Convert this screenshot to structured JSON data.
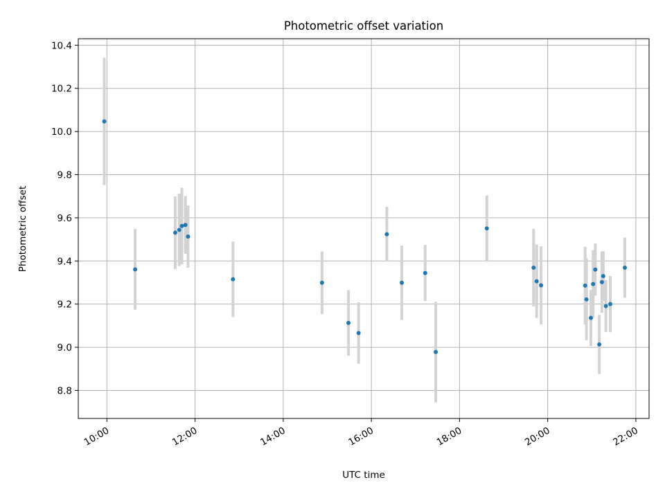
{
  "chart_data": {
    "type": "scatter",
    "title": "Photometric offset variation",
    "xlabel": "UTC time",
    "ylabel": "Photometric offset",
    "x_unit": "hours (UTC)",
    "xlim": [
      9.35,
      22.3
    ],
    "ylim": [
      8.67,
      10.43
    ],
    "grid": true,
    "x_ticks": [
      {
        "value": 10,
        "label": "10:00"
      },
      {
        "value": 12,
        "label": "12:00"
      },
      {
        "value": 14,
        "label": "14:00"
      },
      {
        "value": 16,
        "label": "16:00"
      },
      {
        "value": 18,
        "label": "18:00"
      },
      {
        "value": 20,
        "label": "20:00"
      },
      {
        "value": 22,
        "label": "22:00"
      }
    ],
    "y_ticks": [
      {
        "value": 8.8,
        "label": "8.8"
      },
      {
        "value": 9.0,
        "label": "9.0"
      },
      {
        "value": 9.2,
        "label": "9.2"
      },
      {
        "value": 9.4,
        "label": "9.4"
      },
      {
        "value": 9.6,
        "label": "9.6"
      },
      {
        "value": 9.8,
        "label": "9.8"
      },
      {
        "value": 10.0,
        "label": "10.0"
      },
      {
        "value": 10.2,
        "label": "10.2"
      },
      {
        "value": 10.4,
        "label": "10.4"
      }
    ],
    "marker_color": "#1f77b4",
    "errorbar_color": "#d3d3d3",
    "points": [
      {
        "x": 9.94,
        "y": 10.047,
        "err": 0.295
      },
      {
        "x": 10.64,
        "y": 9.361,
        "err": 0.187
      },
      {
        "x": 11.55,
        "y": 9.531,
        "err": 0.168
      },
      {
        "x": 11.64,
        "y": 9.544,
        "err": 0.168
      },
      {
        "x": 11.7,
        "y": 9.562,
        "err": 0.178
      },
      {
        "x": 11.78,
        "y": 9.567,
        "err": 0.134
      },
      {
        "x": 11.84,
        "y": 9.513,
        "err": 0.144
      },
      {
        "x": 12.86,
        "y": 9.315,
        "err": 0.175
      },
      {
        "x": 14.88,
        "y": 9.299,
        "err": 0.145
      },
      {
        "x": 15.48,
        "y": 9.113,
        "err": 0.152
      },
      {
        "x": 15.71,
        "y": 9.066,
        "err": 0.142
      },
      {
        "x": 16.35,
        "y": 9.524,
        "err": 0.127
      },
      {
        "x": 16.69,
        "y": 9.299,
        "err": 0.172
      },
      {
        "x": 17.22,
        "y": 9.344,
        "err": 0.13
      },
      {
        "x": 17.46,
        "y": 8.978,
        "err": 0.233
      },
      {
        "x": 18.62,
        "y": 9.551,
        "err": 0.153
      },
      {
        "x": 19.68,
        "y": 9.369,
        "err": 0.18
      },
      {
        "x": 19.75,
        "y": 9.306,
        "err": 0.17
      },
      {
        "x": 19.85,
        "y": 9.287,
        "err": 0.181
      },
      {
        "x": 20.85,
        "y": 9.286,
        "err": 0.18
      },
      {
        "x": 20.88,
        "y": 9.222,
        "err": 0.19
      },
      {
        "x": 20.98,
        "y": 9.136,
        "err": 0.13
      },
      {
        "x": 21.03,
        "y": 9.293,
        "err": 0.157
      },
      {
        "x": 21.08,
        "y": 9.36,
        "err": 0.121
      },
      {
        "x": 21.17,
        "y": 9.013,
        "err": 0.137
      },
      {
        "x": 21.23,
        "y": 9.302,
        "err": 0.142
      },
      {
        "x": 21.26,
        "y": 9.33,
        "err": 0.115
      },
      {
        "x": 21.32,
        "y": 9.191,
        "err": 0.12
      },
      {
        "x": 21.42,
        "y": 9.2,
        "err": 0.13
      },
      {
        "x": 21.75,
        "y": 9.369,
        "err": 0.139
      }
    ]
  }
}
